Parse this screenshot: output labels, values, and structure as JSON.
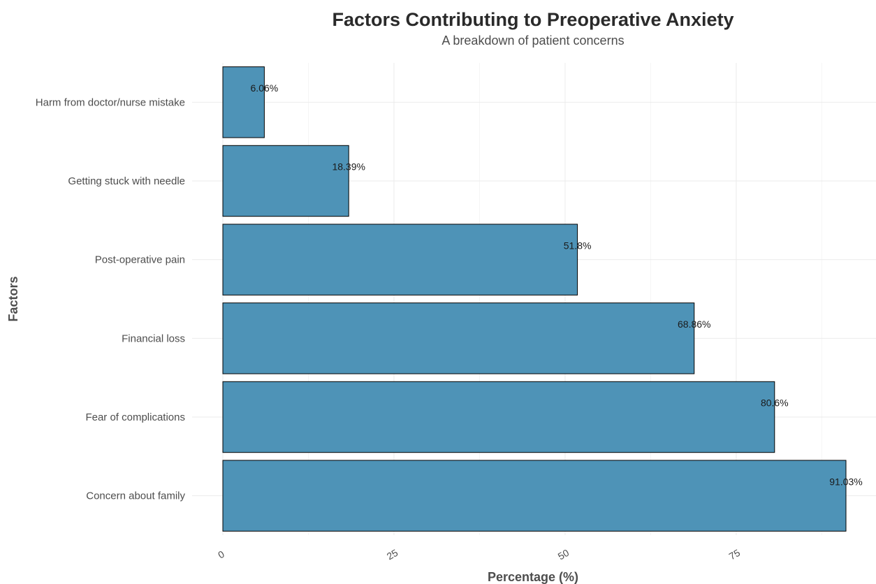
{
  "chart_data": {
    "type": "bar",
    "orientation": "horizontal",
    "title": "Factors Contributing to Preoperative Anxiety",
    "subtitle": "A breakdown of patient concerns",
    "xlabel": "Percentage (%)",
    "ylabel": "Factors",
    "categories": [
      "Concern about family",
      "Fear of complications",
      "Financial loss",
      "Post-operative pain",
      "Getting stuck with needle",
      "Harm from doctor/nurse mistake"
    ],
    "values": [
      91.03,
      80.6,
      68.86,
      51.8,
      18.39,
      6.06
    ],
    "data_labels": [
      "91.03%",
      "80.6%",
      "68.86%",
      "51.8%",
      "18.39%",
      "6.06%"
    ],
    "xlim": [
      0,
      95
    ],
    "x_ticks": [
      0,
      25,
      50,
      75
    ],
    "x_tick_labels": [
      "0",
      "25",
      "50",
      "75"
    ],
    "grid": true,
    "legend": "none",
    "colors": {
      "bar_fill": "#4e93b7",
      "bar_outline": "#000000"
    }
  }
}
